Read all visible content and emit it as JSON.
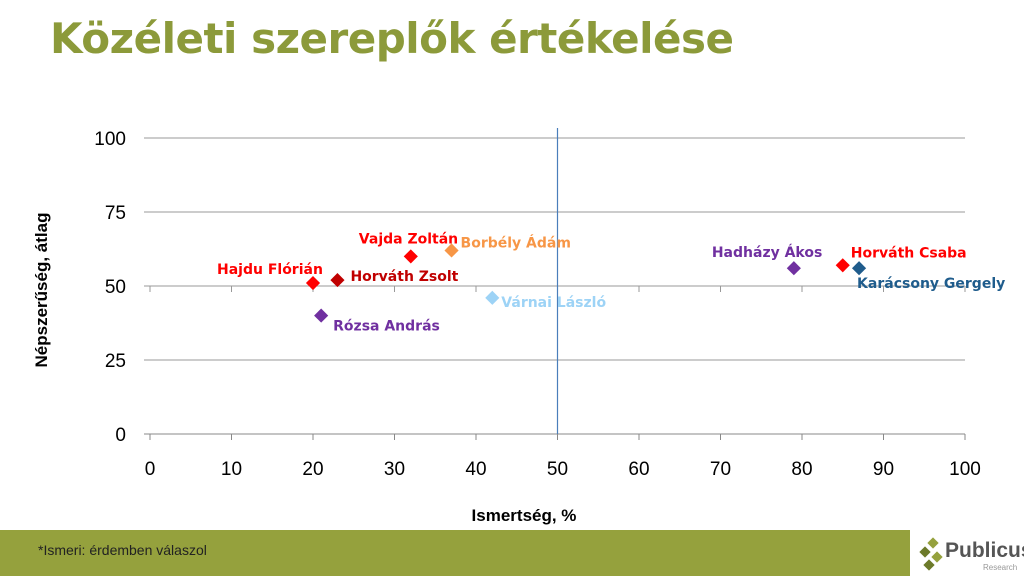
{
  "title": "Közéleti szereplők értékelése",
  "footnote": "*Ismeri: érdemben válaszol",
  "logo": {
    "name": "Publicus",
    "sub": "Research"
  },
  "chart_data": {
    "type": "scatter",
    "xlabel": "Ismertség, %",
    "ylabel": "Népszerűség, átlag",
    "xlim": [
      0,
      100
    ],
    "ylim": [
      0,
      100
    ],
    "xticks": [
      0,
      10,
      20,
      30,
      40,
      50,
      60,
      70,
      80,
      90,
      100
    ],
    "yticks": [
      0,
      25,
      50,
      75,
      100
    ],
    "reference_line_x": 50,
    "points": [
      {
        "label": "Hajdu Flórián",
        "x": 20,
        "y": 51,
        "color": "#ff0000"
      },
      {
        "label": "Horváth Zsolt",
        "x": 23,
        "y": 52,
        "color": "#c00000"
      },
      {
        "label": "Rózsa András",
        "x": 21,
        "y": 40,
        "color": "#7030a0"
      },
      {
        "label": "Vajda Zoltán",
        "x": 32,
        "y": 60,
        "color": "#ff0000"
      },
      {
        "label": "Borbély Ádám",
        "x": 37,
        "y": 62,
        "color": "#f79646"
      },
      {
        "label": "Várnai László",
        "x": 42,
        "y": 46,
        "color": "#9dd3f6"
      },
      {
        "label": "Hadházy Ákos",
        "x": 79,
        "y": 56,
        "color": "#7030a0"
      },
      {
        "label": "Horváth Csaba",
        "x": 85,
        "y": 57,
        "color": "#ff0000"
      },
      {
        "label": "Karácsony Gergely",
        "x": 87,
        "y": 56,
        "color": "#1f5c8c"
      }
    ]
  }
}
